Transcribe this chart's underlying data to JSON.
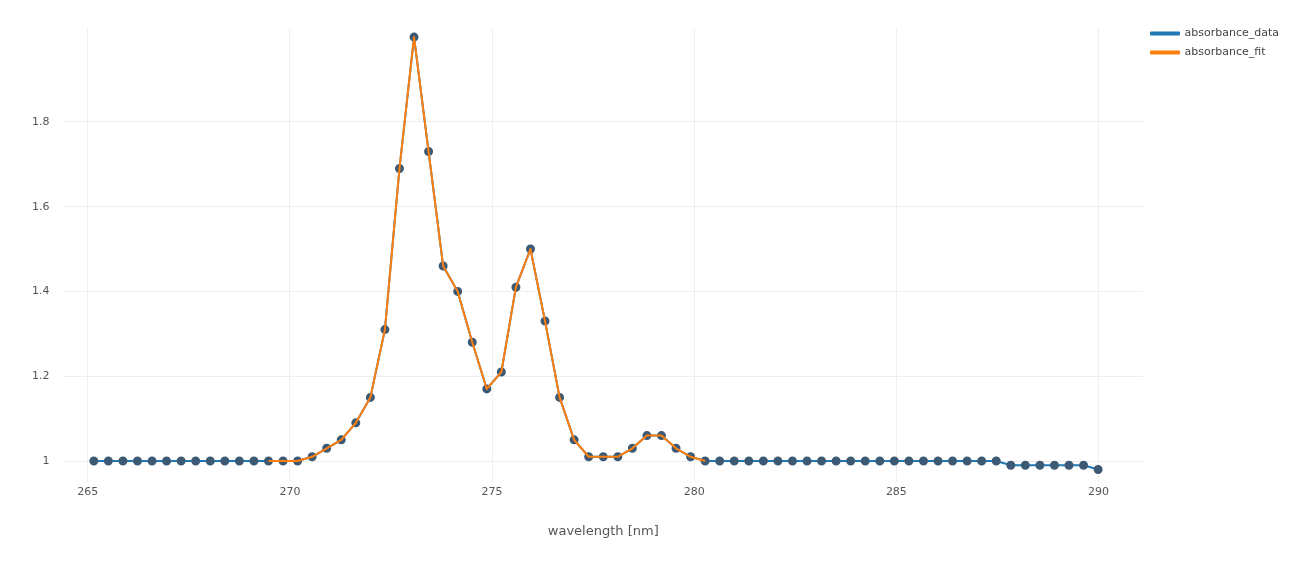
{
  "chart_data": {
    "type": "line",
    "xlabel": "wavelength [nm]",
    "x": [
      265.15,
      265.51,
      265.87,
      266.23,
      266.59,
      266.95,
      267.31,
      267.67,
      268.03,
      268.39,
      268.75,
      269.11,
      269.47,
      269.83,
      270.19,
      270.55,
      270.91,
      271.27,
      271.63,
      271.99,
      272.35,
      272.71,
      273.07,
      273.43,
      273.79,
      274.15,
      274.51,
      274.87,
      275.23,
      275.59,
      275.95,
      276.31,
      276.67,
      277.03,
      277.39,
      277.75,
      278.11,
      278.47,
      278.83,
      279.19,
      279.55,
      279.91,
      280.27,
      280.63,
      280.99,
      281.35,
      281.71,
      282.07,
      282.43,
      282.79,
      283.15,
      283.51,
      283.87,
      284.23,
      284.59,
      284.95,
      285.31,
      285.67,
      286.03,
      286.39,
      286.75,
      287.11,
      287.47,
      287.83,
      288.19,
      288.55,
      288.91,
      289.27,
      289.63,
      289.99
    ],
    "series": [
      {
        "name": "absorbance_data",
        "color": "#1f77b4",
        "values": [
          1.0,
          1.0,
          1.0,
          1.0,
          1.0,
          1.0,
          1.0,
          1.0,
          1.0,
          1.0,
          1.0,
          1.0,
          1.0,
          1.0,
          1.0,
          1.01,
          1.03,
          1.05,
          1.09,
          1.15,
          1.31,
          1.69,
          2.0,
          1.73,
          1.46,
          1.4,
          1.28,
          1.17,
          1.21,
          1.41,
          1.5,
          1.33,
          1.15,
          1.05,
          1.01,
          1.01,
          1.01,
          1.03,
          1.06,
          1.06,
          1.03,
          1.01,
          1.0,
          1.0,
          1.0,
          1.0,
          1.0,
          1.0,
          1.0,
          1.0,
          1.0,
          1.0,
          1.0,
          1.0,
          1.0,
          1.0,
          1.0,
          1.0,
          1.0,
          1.0,
          1.0,
          1.0,
          1.0,
          0.99,
          0.99,
          0.99,
          0.99,
          0.99,
          0.99,
          0.98
        ]
      },
      {
        "name": "absorbance_fit",
        "color": "#ff7f0e",
        "marker": "none",
        "x": [
          269.47,
          269.83,
          270.19,
          270.55,
          270.91,
          271.27,
          271.63,
          271.99,
          272.35,
          272.71,
          273.07,
          273.43,
          273.79,
          274.15,
          274.51,
          274.87,
          275.23,
          275.59,
          275.95,
          276.31,
          276.67,
          277.03,
          277.39,
          277.75,
          278.11,
          278.47,
          278.83,
          279.19,
          279.55,
          279.91,
          280.27
        ],
        "values": [
          1.0,
          1.0,
          1.0,
          1.01,
          1.03,
          1.05,
          1.09,
          1.15,
          1.31,
          1.69,
          2.0,
          1.73,
          1.46,
          1.4,
          1.28,
          1.17,
          1.21,
          1.41,
          1.5,
          1.33,
          1.15,
          1.05,
          1.01,
          1.01,
          1.01,
          1.03,
          1.06,
          1.06,
          1.03,
          1.01,
          1.0
        ]
      }
    ],
    "xlim": [
      264.4,
      291.1
    ],
    "xticks": [
      265,
      270,
      275,
      280,
      285,
      290
    ],
    "ylim": [
      0.95,
      2.02
    ],
    "yticks": [
      1,
      1.2,
      1.4,
      1.6,
      1.8
    ],
    "grid": true,
    "legend": "top right",
    "marker": "circle",
    "line_style": "solid"
  }
}
